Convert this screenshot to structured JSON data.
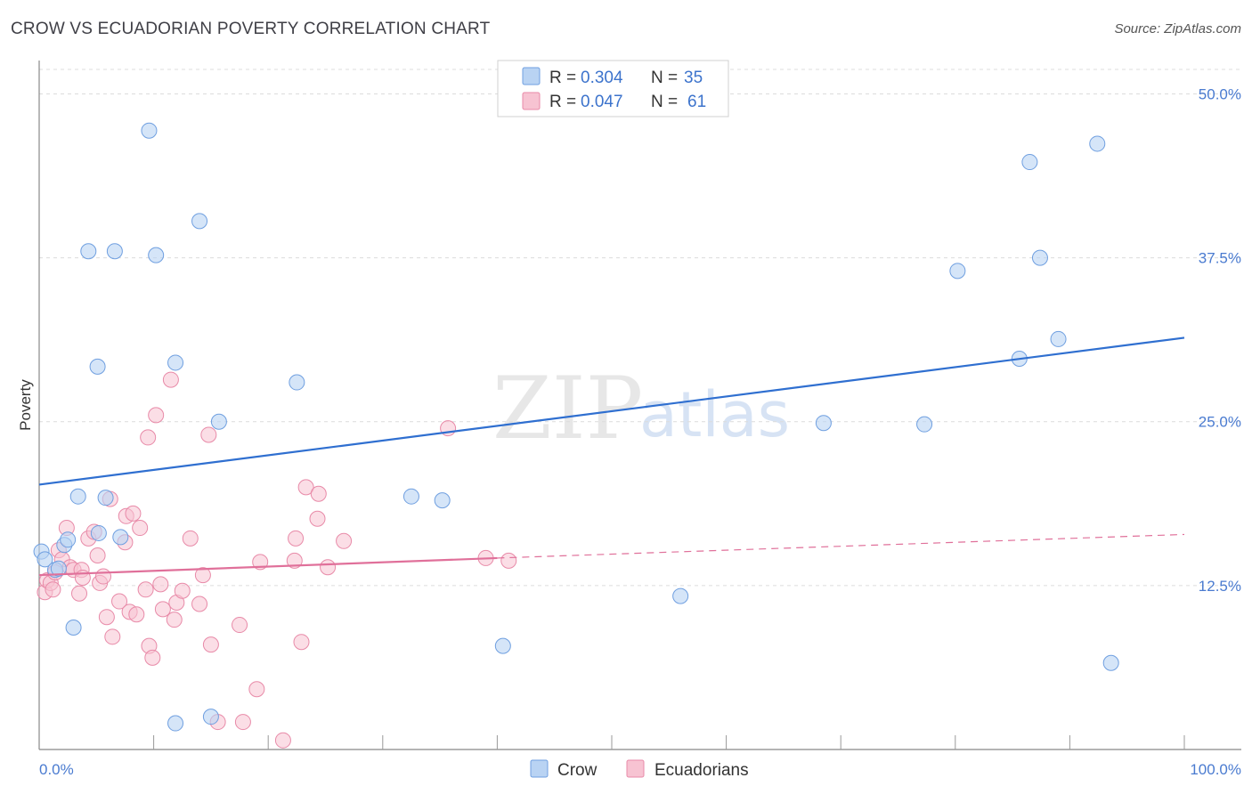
{
  "header": {
    "title": "CROW VS ECUADORIAN POVERTY CORRELATION CHART",
    "source": "Source: ZipAtlas.com"
  },
  "watermark": {
    "zip": "ZIP",
    "atlas": "atlas"
  },
  "colors": {
    "crow_fill": "#b9d3f3",
    "crow_stroke": "#6f9fe0",
    "crow_line": "#2f6fd0",
    "ecu_fill": "#f7c3d2",
    "ecu_stroke": "#e88aa8",
    "ecu_line": "#e0709a",
    "tick_text": "#4a7bd0",
    "grid": "#dcdcdc"
  },
  "legend": {
    "rows": [
      {
        "r_label": "R =",
        "r_value": "0.304",
        "n_label": "N =",
        "n_value": "35"
      },
      {
        "r_label": "R =",
        "r_value": "0.047",
        "n_label": "N =",
        "n_value": "61"
      }
    ]
  },
  "bottom_legend": {
    "crow": "Crow",
    "ecuadorians": "Ecuadorians"
  },
  "chart_data": {
    "type": "scatter",
    "ylabel": "Poverty",
    "xlim": [
      0,
      100
    ],
    "ylim": [
      0,
      52
    ],
    "x_tick_labels": [
      "0.0%",
      "100.0%"
    ],
    "y_ticks": [
      12.5,
      25.0,
      37.5,
      50.0
    ],
    "y_tick_labels": [
      "12.5%",
      "25.0%",
      "37.5%",
      "50.0%"
    ],
    "grid": true,
    "series": [
      {
        "name": "Crow",
        "points": [
          [
            0.2,
            15.1
          ],
          [
            0.5,
            14.5
          ],
          [
            1.4,
            13.7
          ],
          [
            1.7,
            13.8
          ],
          [
            2.2,
            15.6
          ],
          [
            2.5,
            16.0
          ],
          [
            3.0,
            9.3
          ],
          [
            3.4,
            19.3
          ],
          [
            4.3,
            38.0
          ],
          [
            5.1,
            29.2
          ],
          [
            5.2,
            16.5
          ],
          [
            5.8,
            19.2
          ],
          [
            6.6,
            38.0
          ],
          [
            7.1,
            16.2
          ],
          [
            9.6,
            47.2
          ],
          [
            10.2,
            37.7
          ],
          [
            11.9,
            2.0
          ],
          [
            11.9,
            29.5
          ],
          [
            14.0,
            40.3
          ],
          [
            15.0,
            2.5
          ],
          [
            15.7,
            25.0
          ],
          [
            22.5,
            28.0
          ],
          [
            32.5,
            19.3
          ],
          [
            35.2,
            19.0
          ],
          [
            40.5,
            7.9
          ],
          [
            56.0,
            11.7
          ],
          [
            68.5,
            24.9
          ],
          [
            77.3,
            24.8
          ],
          [
            80.2,
            36.5
          ],
          [
            85.6,
            29.8
          ],
          [
            86.5,
            44.8
          ],
          [
            87.4,
            37.5
          ],
          [
            89.0,
            31.3
          ],
          [
            92.4,
            46.2
          ],
          [
            93.6,
            6.6
          ]
        ],
        "trend": [
          [
            0,
            20.2
          ],
          [
            100,
            31.4
          ]
        ]
      },
      {
        "name": "Ecuadorians",
        "points": [
          [
            0.5,
            12.0
          ],
          [
            0.7,
            12.9
          ],
          [
            1.0,
            12.7
          ],
          [
            1.2,
            12.2
          ],
          [
            1.4,
            13.5
          ],
          [
            1.7,
            15.2
          ],
          [
            2.0,
            14.5
          ],
          [
            2.4,
            16.9
          ],
          [
            2.7,
            13.9
          ],
          [
            3.0,
            13.7
          ],
          [
            3.5,
            11.9
          ],
          [
            3.7,
            13.7
          ],
          [
            3.8,
            13.1
          ],
          [
            4.3,
            16.1
          ],
          [
            4.8,
            16.6
          ],
          [
            5.1,
            14.8
          ],
          [
            5.3,
            12.7
          ],
          [
            5.6,
            13.2
          ],
          [
            5.9,
            10.1
          ],
          [
            6.2,
            19.1
          ],
          [
            6.4,
            8.6
          ],
          [
            7.0,
            11.3
          ],
          [
            7.5,
            15.8
          ],
          [
            7.6,
            17.8
          ],
          [
            7.9,
            10.5
          ],
          [
            8.2,
            18.0
          ],
          [
            8.5,
            10.3
          ],
          [
            8.8,
            16.9
          ],
          [
            9.3,
            12.2
          ],
          [
            9.5,
            23.8
          ],
          [
            9.6,
            7.9
          ],
          [
            9.9,
            7.0
          ],
          [
            10.2,
            25.5
          ],
          [
            10.6,
            12.6
          ],
          [
            10.8,
            10.7
          ],
          [
            11.5,
            28.2
          ],
          [
            11.8,
            9.9
          ],
          [
            12.0,
            11.2
          ],
          [
            12.5,
            12.1
          ],
          [
            13.2,
            16.1
          ],
          [
            14.0,
            11.1
          ],
          [
            14.3,
            13.3
          ],
          [
            14.8,
            24.0
          ],
          [
            15.0,
            8.0
          ],
          [
            15.6,
            2.1
          ],
          [
            17.5,
            9.5
          ],
          [
            17.8,
            2.1
          ],
          [
            19.0,
            4.6
          ],
          [
            19.3,
            14.3
          ],
          [
            21.3,
            0.7
          ],
          [
            22.3,
            14.4
          ],
          [
            22.4,
            16.1
          ],
          [
            22.9,
            8.2
          ],
          [
            23.3,
            20.0
          ],
          [
            24.3,
            17.6
          ],
          [
            24.4,
            19.5
          ],
          [
            25.2,
            13.9
          ],
          [
            26.6,
            15.9
          ],
          [
            35.7,
            24.5
          ],
          [
            39.0,
            14.6
          ],
          [
            41.0,
            14.4
          ]
        ],
        "trend_solid": [
          [
            0,
            13.3
          ],
          [
            40,
            14.6
          ]
        ],
        "trend_dashed": [
          [
            40,
            14.6
          ],
          [
            100,
            16.4
          ]
        ]
      }
    ]
  }
}
